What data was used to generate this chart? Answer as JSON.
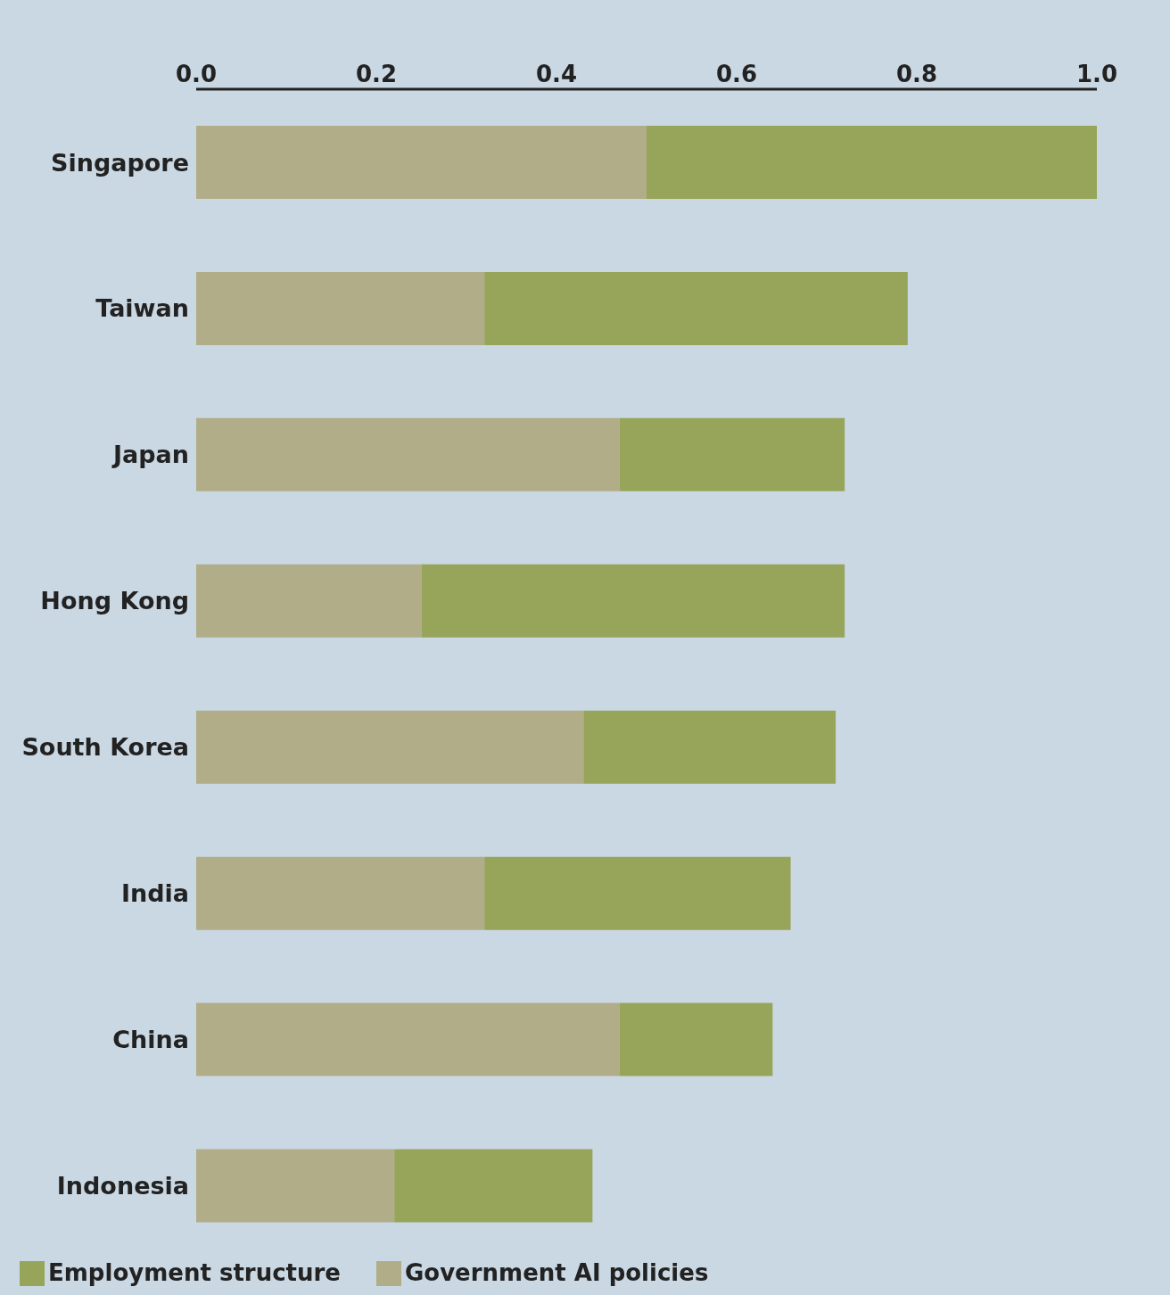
{
  "chart_data": {
    "type": "bar",
    "orientation": "horizontal",
    "stacked": true,
    "categories": [
      "Singapore",
      "Taiwan",
      "Japan",
      "Hong Kong",
      "South Korea",
      "India",
      "China",
      "Indonesia"
    ],
    "series": [
      {
        "name": "Government AI policies",
        "color": "#b1ad88",
        "values": [
          0.5,
          0.32,
          0.47,
          0.25,
          0.43,
          0.32,
          0.47,
          0.22
        ]
      },
      {
        "name": "Employment structure",
        "color": "#97a55a",
        "values": [
          0.5,
          0.47,
          0.25,
          0.47,
          0.28,
          0.34,
          0.17,
          0.22
        ]
      }
    ],
    "xlim": [
      0,
      1
    ],
    "xticks": [
      {
        "value": 0,
        "label": "0.0"
      },
      {
        "value": 0.2,
        "label": "0.2"
      },
      {
        "value": 0.4,
        "label": "0.4"
      },
      {
        "value": 0.6,
        "label": "0.6"
      },
      {
        "value": 0.8,
        "label": "0.8"
      },
      {
        "value": 1,
        "label": "1.0"
      }
    ],
    "grid": false,
    "legend": "bottom left"
  }
}
